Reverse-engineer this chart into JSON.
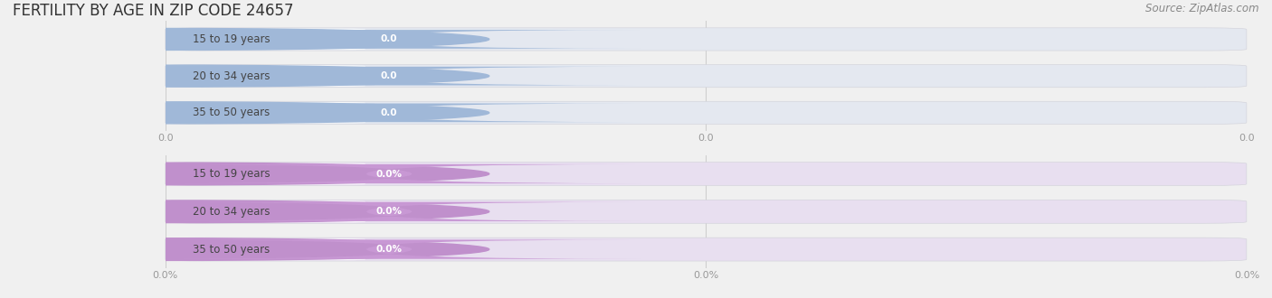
{
  "title": "FERTILITY BY AGE IN ZIP CODE 24657",
  "source_text": "Source: ZipAtlas.com",
  "background_color": "#f0f0f0",
  "top_section": {
    "categories": [
      "15 to 19 years",
      "20 to 34 years",
      "35 to 50 years"
    ],
    "values": [
      0.0,
      0.0,
      0.0
    ],
    "bar_bg_color": "#e4e8f0",
    "circle_color": "#a0b8d8",
    "label_box_color": "#f8f9fb",
    "label_color": "#444444",
    "value_bg_color": "#a0b8d8",
    "value_text_color": "#ffffff",
    "tick_labels": [
      "0.0",
      "0.0",
      "0.0"
    ],
    "is_percent": false
  },
  "bottom_section": {
    "categories": [
      "15 to 19 years",
      "20 to 34 years",
      "35 to 50 years"
    ],
    "values": [
      0.0,
      0.0,
      0.0
    ],
    "bar_bg_color": "#e8dff0",
    "circle_color": "#c090cc",
    "label_box_color": "#f8f5fb",
    "label_color": "#444444",
    "value_bg_color": "#c898d4",
    "value_text_color": "#ffffff",
    "tick_labels": [
      "0.0%",
      "0.0%",
      "0.0%"
    ],
    "is_percent": true
  },
  "title_fontsize": 12,
  "label_fontsize": 8.5,
  "value_fontsize": 7.5,
  "tick_fontsize": 8,
  "source_fontsize": 8.5
}
